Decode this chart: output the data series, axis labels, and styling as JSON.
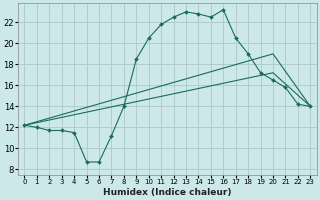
{
  "title": "",
  "xlabel": "Humidex (Indice chaleur)",
  "background_color": "#cce8e8",
  "grid_color": "#b0cccc",
  "line_color": "#1a6b5a",
  "xlim": [
    -0.5,
    23.5
  ],
  "ylim": [
    7.5,
    23.8
  ],
  "xticks": [
    0,
    1,
    2,
    3,
    4,
    5,
    6,
    7,
    8,
    9,
    10,
    11,
    12,
    13,
    14,
    15,
    16,
    17,
    18,
    19,
    20,
    21,
    22,
    23
  ],
  "yticks": [
    8,
    10,
    12,
    14,
    16,
    18,
    20,
    22
  ],
  "line1_x": [
    0,
    1,
    2,
    3,
    4,
    5,
    6,
    7,
    8,
    9,
    10,
    11,
    12,
    13,
    14,
    15,
    16,
    17,
    18,
    19,
    20,
    21,
    22,
    23
  ],
  "line1_y": [
    12.2,
    12.0,
    11.7,
    11.7,
    11.5,
    8.7,
    8.7,
    11.2,
    14.0,
    18.5,
    20.5,
    21.8,
    22.5,
    23.0,
    22.8,
    22.5,
    23.2,
    20.5,
    19.0,
    17.2,
    16.5,
    15.8,
    14.2,
    14.0
  ],
  "line2_x": [
    0,
    20,
    23
  ],
  "line2_y": [
    12.2,
    17.2,
    14.0
  ],
  "line3_x": [
    0,
    20,
    23
  ],
  "line3_y": [
    12.2,
    19.0,
    14.0
  ]
}
